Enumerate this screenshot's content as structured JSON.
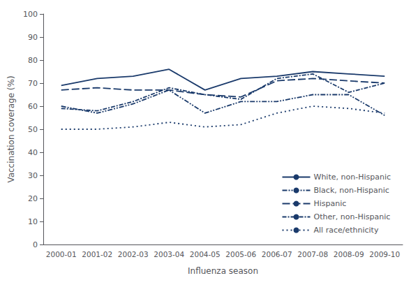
{
  "chart_data": {
    "type": "line",
    "xlabel": "Influenza season",
    "ylabel": "Vaccination coverage (%)",
    "categories": [
      "2000-01",
      "2001-02",
      "2002-03",
      "2003-04",
      "2004-05",
      "2005-06",
      "2006-07",
      "2007-08",
      "2008-09",
      "2009-10"
    ],
    "series": [
      {
        "name": "White, non-Hispanic",
        "color": "#1a3a6b",
        "line_style": "solid",
        "values": [
          69,
          72,
          73,
          76,
          67,
          72,
          73,
          75,
          74,
          73
        ]
      },
      {
        "name": "Black, non-Hispanic",
        "color": "#1a3a6b",
        "line_style": "dash-dot-dot",
        "values": [
          60,
          57,
          61,
          67,
          57,
          62,
          62,
          65,
          65,
          56
        ]
      },
      {
        "name": "Hispanic",
        "color": "#1a3a6b",
        "line_style": "long-dash",
        "values": [
          67,
          68,
          67,
          67,
          65,
          64,
          71,
          72,
          71,
          70
        ]
      },
      {
        "name": "Other, non-Hispanic",
        "color": "#1a3a6b",
        "line_style": "dash-dot",
        "values": [
          59,
          58,
          62,
          68,
          65,
          63,
          72,
          74,
          66,
          70
        ]
      },
      {
        "name": "All race/ethnicity",
        "color": "#1a3a6b",
        "line_style": "dotted",
        "values": [
          50,
          50,
          51,
          53,
          51,
          52,
          57,
          60,
          59,
          57
        ]
      }
    ],
    "ylim": [
      0,
      100
    ],
    "yticks": [
      0,
      10,
      20,
      30,
      40,
      50,
      60,
      70,
      80,
      90,
      100
    ],
    "grid": false,
    "legend": "lower right"
  }
}
